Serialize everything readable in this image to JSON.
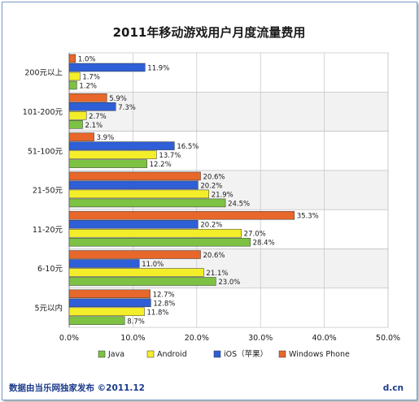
{
  "chart_data": {
    "type": "bar",
    "orientation": "horizontal",
    "title": "2011年移动游戏用户月度流量费用",
    "categories": [
      "200元以上",
      "101-200元",
      "51-100元",
      "21-50元",
      "11-20元",
      "6-10元",
      "5元以内"
    ],
    "series": [
      {
        "name": "Windows Phone",
        "color": "#e8672a",
        "values": [
          1.0,
          5.9,
          3.9,
          20.6,
          35.3,
          20.6,
          12.7
        ],
        "labels": [
          "1.0%",
          "5.9%",
          "3.9%",
          "20.6%",
          "35.3%",
          "20.6%",
          "12.7%"
        ]
      },
      {
        "name": "iOS（苹果）",
        "color": "#2f5fd6",
        "values": [
          11.9,
          7.3,
          16.5,
          20.2,
          20.2,
          11.0,
          12.8
        ],
        "labels": [
          "11.9%",
          "7.3%",
          "16.5%",
          "20.2%",
          "20.2%",
          "11.0%",
          "12.8%"
        ]
      },
      {
        "name": "Android",
        "color": "#f4ee2a",
        "values": [
          1.7,
          2.7,
          13.7,
          21.9,
          27.0,
          21.1,
          11.8
        ],
        "labels": [
          "1.7%",
          "2.7%",
          "13.7%",
          "21.9%",
          "27.0%",
          "21.1%",
          "11.8%"
        ]
      },
      {
        "name": "Java",
        "color": "#7dc243",
        "values": [
          1.2,
          2.1,
          12.2,
          24.5,
          28.4,
          23.0,
          8.7
        ],
        "labels": [
          "1.2%",
          "2.1%",
          "12.2%",
          "24.5%",
          "28.4%",
          "23.0%",
          "8.7%"
        ]
      }
    ],
    "xlim": [
      0,
      50
    ],
    "xticks": [
      "0.0%",
      "10.0%",
      "20.0%",
      "30.0%",
      "40.0%",
      "50.0%"
    ],
    "legend_order": [
      "Java",
      "Android",
      "iOS（苹果）",
      "Windows Phone"
    ],
    "legend_position": "bottom",
    "grid": true,
    "group_band_colors": [
      "#ffffff",
      "#f2f2f2"
    ]
  },
  "footer": {
    "left": "数据由当乐网独家发布  ©2011.12",
    "right": "d.cn"
  },
  "colors": {
    "frame_border": "#7a9cc6",
    "footer_text": "#1a3a8a"
  }
}
